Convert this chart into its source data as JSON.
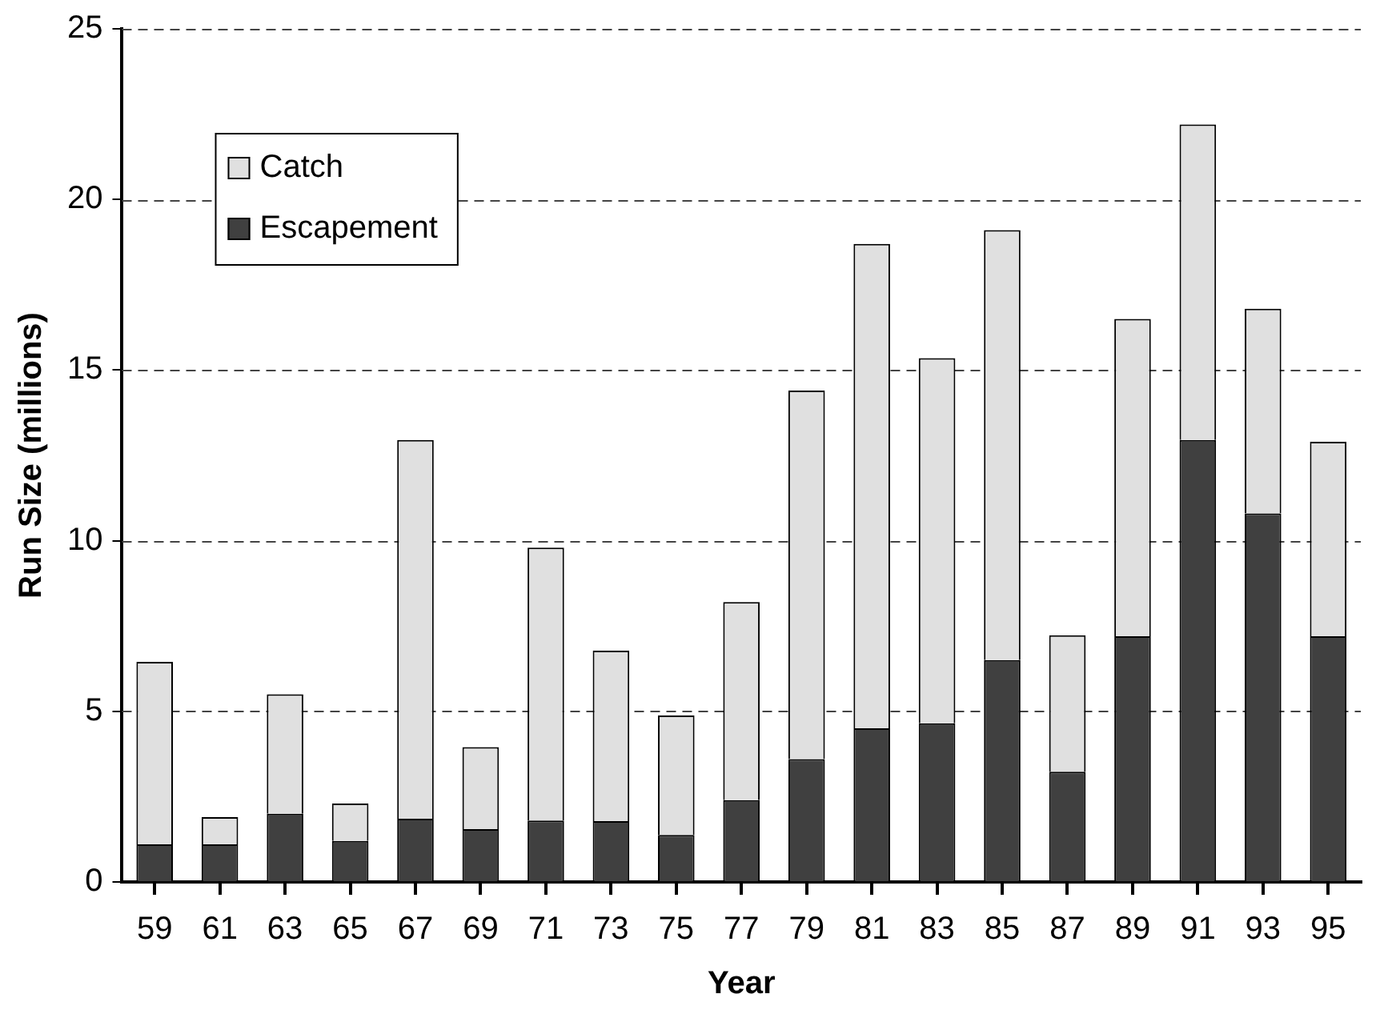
{
  "chart_data": {
    "type": "bar",
    "stacked": true,
    "xlabel": "Year",
    "ylabel": "Run Size (millions)",
    "categories": [
      "59",
      "61",
      "63",
      "65",
      "67",
      "69",
      "71",
      "73",
      "75",
      "77",
      "79",
      "81",
      "83",
      "85",
      "87",
      "89",
      "91",
      "93",
      "95"
    ],
    "series": [
      {
        "name": "Escapement",
        "color": "#404040",
        "values": [
          1.1,
          1.1,
          2.0,
          1.2,
          1.85,
          1.55,
          1.8,
          1.78,
          1.38,
          2.4,
          3.6,
          4.5,
          4.65,
          6.5,
          3.23,
          7.2,
          12.95,
          10.8,
          7.2
        ]
      },
      {
        "name": "Catch",
        "color": "#e0e0e0",
        "values": [
          5.35,
          0.8,
          3.5,
          1.1,
          11.1,
          2.4,
          8.0,
          5.0,
          3.5,
          5.8,
          10.8,
          14.2,
          10.7,
          12.6,
          4.0,
          9.3,
          9.25,
          6.0,
          5.7
        ]
      }
    ],
    "ylim": [
      0,
      25
    ],
    "yticks": [
      0,
      5,
      10,
      15,
      20,
      25
    ],
    "grid": "y",
    "legend": "top left"
  }
}
